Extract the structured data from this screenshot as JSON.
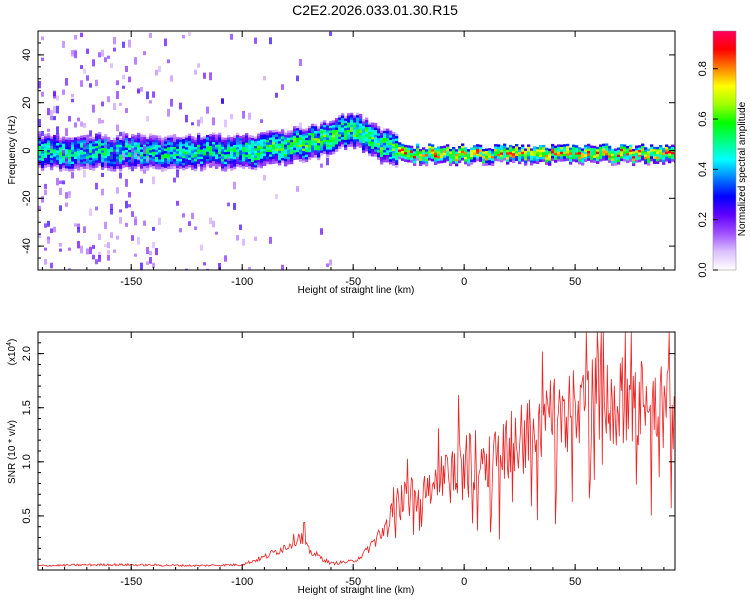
{
  "title": "C2E2.2026.033.01.30.R15",
  "chart_data": [
    {
      "type": "heatmap",
      "name": "spectrogram",
      "xlabel": "Height of straight line (km)",
      "ylabel": "Frequency (Hz)",
      "xlim": [
        -192,
        95
      ],
      "ylim": [
        -50,
        50
      ],
      "xticks": [
        -150,
        -100,
        -50,
        0,
        50
      ],
      "yticks": [
        -40,
        -20,
        0,
        20,
        40
      ],
      "colorbar": {
        "label": "Normalized spectral amplitude",
        "range": [
          0,
          0.95
        ],
        "ticks": [
          0.0,
          0.2,
          0.4,
          0.6,
          0.8
        ],
        "tick_labels": [
          "0.0",
          "0.2",
          "0.4",
          "0.6",
          "0.8"
        ],
        "colors": [
          "#ffffff",
          "#dcc0ff",
          "#a050ff",
          "#6000ff",
          "#0000ff",
          "#0080ff",
          "#00ffff",
          "#00ff80",
          "#00ff00",
          "#a0ff00",
          "#ffff00",
          "#ff8000",
          "#ff0000",
          "#ff0060"
        ]
      },
      "ridge": {
        "x": [
          -192,
          -150,
          -120,
          -100,
          -80,
          -65,
          -52,
          -45,
          -38,
          -30,
          -25,
          0,
          50,
          95
        ],
        "freq": [
          0,
          0,
          0,
          0,
          2,
          5,
          9,
          7,
          3,
          0,
          -1,
          -1,
          -1,
          -1
        ]
      }
    },
    {
      "type": "line",
      "name": "snr",
      "xlabel": "Height of straight line (km)",
      "ylabel": "SNR (10 * v/v)",
      "multiplier": "(x10",
      "multiplier_exp": "4",
      "multiplier_close": ")",
      "xlim": [
        -192,
        95
      ],
      "ylim": [
        0,
        22000
      ],
      "xticks": [
        -150,
        -100,
        -50,
        0,
        50
      ],
      "yticks": [
        5000,
        10000,
        15000,
        20000
      ],
      "ytick_labels": [
        "0.5",
        "1.0",
        "1.5",
        "2.0"
      ],
      "color": "#ee2222",
      "envelope": {
        "x": [
          -192,
          -160,
          -120,
          -100,
          -90,
          -80,
          -74,
          -70,
          -60,
          -50,
          -45,
          -40,
          -35,
          -30,
          -20,
          -10,
          0,
          10,
          20,
          30,
          40,
          50,
          60,
          70,
          80,
          95
        ],
        "y": [
          400,
          500,
          400,
          500,
          1200,
          2200,
          3200,
          1800,
          600,
          800,
          1500,
          2800,
          4000,
          6000,
          7500,
          8500,
          9800,
          10500,
          11500,
          13000,
          14000,
          15500,
          16000,
          15500,
          15000,
          15000
        ]
      }
    }
  ]
}
